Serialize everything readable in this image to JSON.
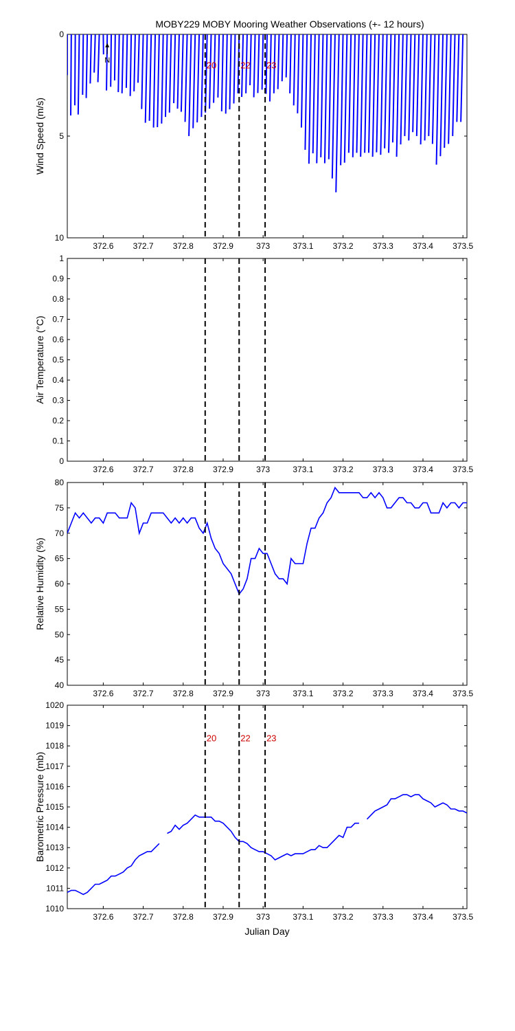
{
  "figure": {
    "title": "MOBY229 MOBY Mooring Weather Observations (+- 12 hours)"
  },
  "colors": {
    "data": "#0000ff",
    "marker_label": "#cc0000",
    "axis": "#000000",
    "background": "#ffffff"
  },
  "chart_data": [
    {
      "type": "line",
      "variant": "wind-sticks",
      "ylabel": "Wind Speed (m/s)",
      "xlabel": "",
      "xlim": [
        372.51,
        373.51
      ],
      "ylim": [
        0,
        10
      ],
      "y_reversed": true,
      "xticks": [
        372.6,
        372.7,
        372.8,
        372.9,
        373,
        373.1,
        373.2,
        373.3,
        373.4,
        373.5
      ],
      "xtick_labels": [
        "372.6",
        "372.7",
        "372.8",
        "372.9",
        "373",
        "373.1",
        "373.2",
        "373.3",
        "373.4",
        "373.5"
      ],
      "yticks": [
        0,
        5,
        10
      ],
      "ytick_labels": [
        "0",
        "5",
        "10"
      ],
      "grid": false,
      "north_label": "N",
      "series": [
        {
          "x": [
            372.51,
            372.52,
            372.53,
            372.54,
            372.55,
            372.56,
            372.57,
            372.58,
            372.59,
            372.6,
            372.61,
            372.62,
            372.63,
            372.64,
            372.65,
            372.66,
            372.67,
            372.68,
            372.69,
            372.7,
            372.71,
            372.72,
            372.73,
            372.74,
            372.75,
            372.76,
            372.77,
            372.78,
            372.79,
            372.8,
            372.81,
            372.82,
            372.83,
            372.84,
            372.85,
            372.86,
            372.87,
            372.88,
            372.89,
            372.9,
            372.91,
            372.92,
            372.93,
            372.94,
            372.95,
            372.96,
            372.97,
            372.98,
            372.99,
            373.0,
            373.01,
            373.02,
            373.03,
            373.04,
            373.05,
            373.06,
            373.07,
            373.08,
            373.09,
            373.1,
            373.11,
            373.12,
            373.13,
            373.14,
            373.15,
            373.16,
            373.17,
            373.18,
            373.19,
            373.2,
            373.21,
            373.22,
            373.23,
            373.24,
            373.25,
            373.26,
            373.27,
            373.28,
            373.29,
            373.3,
            373.31,
            373.32,
            373.33,
            373.34,
            373.35,
            373.36,
            373.37,
            373.38,
            373.39,
            373.4,
            373.41,
            373.42,
            373.43,
            373.44,
            373.45,
            373.46,
            373.47,
            373.48,
            373.49,
            373.5
          ],
          "speed": [
            2.0,
            4.0,
            3.5,
            4.0,
            3.0,
            3.2,
            2.5,
            2.0,
            2.5,
            1.0,
            2.8,
            2.6,
            2.3,
            2.9,
            3.0,
            2.7,
            3.1,
            2.9,
            2.5,
            3.8,
            4.5,
            4.4,
            4.7,
            4.7,
            4.5,
            4.2,
            4.0,
            3.5,
            3.8,
            4.0,
            4.5,
            5.2,
            4.8,
            4.5,
            4.2,
            4.0,
            3.8,
            3.5,
            3.2,
            3.9,
            4.0,
            3.8,
            3.5,
            3.0,
            3.2,
            3.0,
            2.6,
            3.2,
            3.0,
            2.8,
            3.0,
            3.4,
            3.0,
            2.8,
            2.4,
            2.2,
            3.0,
            3.6,
            4.0,
            4.7,
            5.8,
            6.5,
            6.0,
            6.5,
            6.2,
            6.5,
            6.3,
            7.3,
            8.0,
            6.6,
            6.5,
            6.0,
            6.2,
            6.0,
            6.2,
            6.0,
            6.0,
            6.2,
            6.0,
            6.1,
            5.8,
            6.0,
            5.5,
            6.2,
            5.6,
            5.2,
            5.4,
            5.0,
            5.2,
            5.6,
            5.4,
            5.2,
            5.6,
            6.6,
            6.2,
            5.8,
            5.6,
            5.2,
            4.5,
            4.5
          ],
          "direction_deg": [
            180,
            185,
            185,
            190,
            188,
            192,
            195,
            200,
            200,
            170,
            190,
            188,
            190,
            192,
            195,
            193,
            192,
            195,
            198,
            195,
            195,
            195,
            193,
            194,
            193,
            195,
            196,
            195,
            196,
            198,
            197,
            196,
            196,
            196,
            195,
            196,
            196,
            196,
            194,
            194,
            193,
            194,
            194,
            195,
            196,
            195,
            196,
            195,
            196,
            194,
            193,
            194,
            195,
            196,
            196,
            196,
            195,
            194,
            194,
            193,
            192,
            192,
            193,
            193,
            193,
            193,
            193,
            194,
            194,
            193,
            194,
            194,
            193,
            194,
            194,
            194,
            194,
            194,
            195,
            194,
            195,
            194,
            195,
            194,
            195,
            196,
            195,
            196,
            196,
            195,
            195,
            196,
            196,
            194,
            195,
            196,
            196,
            196,
            197,
            197
          ]
        }
      ],
      "markers": [
        {
          "x": 372.855,
          "label": "20"
        },
        {
          "x": 372.94,
          "label": "22"
        },
        {
          "x": 373.005,
          "label": "23"
        }
      ],
      "marker_label_y": 1.5
    },
    {
      "type": "line",
      "ylabel": "Air Temperature (°C)",
      "xlabel": "",
      "xlim": [
        372.51,
        373.51
      ],
      "ylim": [
        0,
        1
      ],
      "xticks": [
        372.6,
        372.7,
        372.8,
        372.9,
        373,
        373.1,
        373.2,
        373.3,
        373.4,
        373.5
      ],
      "xtick_labels": [
        "372.6",
        "372.7",
        "372.8",
        "372.9",
        "373",
        "373.1",
        "373.2",
        "373.3",
        "373.4",
        "373.5"
      ],
      "yticks": [
        0,
        0.1,
        0.2,
        0.3,
        0.4,
        0.5,
        0.6,
        0.7,
        0.8,
        0.9,
        1
      ],
      "ytick_labels": [
        "0",
        "0.1",
        "0.2",
        "0.3",
        "0.4",
        "0.5",
        "0.6",
        "0.7",
        "0.8",
        "0.9",
        "1"
      ],
      "grid": false,
      "series": [],
      "markers": [
        {
          "x": 372.855,
          "label": ""
        },
        {
          "x": 372.94,
          "label": ""
        },
        {
          "x": 373.005,
          "label": ""
        }
      ]
    },
    {
      "type": "line",
      "ylabel": "Relative Humidity (%)",
      "xlabel": "",
      "xlim": [
        372.51,
        373.51
      ],
      "ylim": [
        40,
        80
      ],
      "xticks": [
        372.6,
        372.7,
        372.8,
        372.9,
        373,
        373.1,
        373.2,
        373.3,
        373.4,
        373.5
      ],
      "xtick_labels": [
        "372.6",
        "372.7",
        "372.8",
        "372.9",
        "373",
        "373.1",
        "373.2",
        "373.3",
        "373.4",
        "373.5"
      ],
      "yticks": [
        40,
        45,
        50,
        55,
        60,
        65,
        70,
        75,
        80
      ],
      "ytick_labels": [
        "40",
        "45",
        "50",
        "55",
        "60",
        "65",
        "70",
        "75",
        "80"
      ],
      "grid": false,
      "series": [
        {
          "x": [
            372.51,
            372.52,
            372.53,
            372.54,
            372.55,
            372.56,
            372.57,
            372.58,
            372.59,
            372.6,
            372.61,
            372.62,
            372.63,
            372.64,
            372.65,
            372.66,
            372.67,
            372.68,
            372.69,
            372.7,
            372.71,
            372.72,
            372.73,
            372.74,
            372.75,
            372.76,
            372.77,
            372.78,
            372.79,
            372.8,
            372.81,
            372.82,
            372.83,
            372.84,
            372.85,
            372.86,
            372.87,
            372.88,
            372.89,
            372.9,
            372.91,
            372.92,
            372.93,
            372.94,
            372.95,
            372.96,
            372.97,
            372.98,
            372.99,
            373.0,
            373.01,
            373.02,
            373.03,
            373.04,
            373.05,
            373.06,
            373.07,
            373.08,
            373.09,
            373.1,
            373.11,
            373.12,
            373.13,
            373.14,
            373.15,
            373.16,
            373.17,
            373.18,
            373.19,
            373.2,
            373.21,
            373.22,
            373.23,
            373.24,
            373.25,
            373.26,
            373.27,
            373.28,
            373.29,
            373.3,
            373.31,
            373.32,
            373.33,
            373.34,
            373.35,
            373.36,
            373.37,
            373.38,
            373.39,
            373.4,
            373.41,
            373.42,
            373.43,
            373.44,
            373.45,
            373.46,
            373.47,
            373.48,
            373.49,
            373.5,
            373.51
          ],
          "y": [
            70,
            72,
            74,
            73,
            74,
            73,
            72,
            73,
            73,
            72,
            74,
            74,
            74,
            73,
            73,
            73,
            76,
            75,
            70,
            72,
            72,
            74,
            74,
            74,
            74,
            73,
            72,
            73,
            72,
            73,
            72,
            73,
            73,
            71,
            70,
            72,
            69,
            67,
            66,
            64,
            63,
            62,
            60,
            58,
            59,
            61,
            65,
            65,
            67,
            66,
            66,
            64,
            62,
            61,
            61,
            60,
            65,
            64,
            64,
            64,
            68,
            71,
            71,
            73,
            74,
            76,
            77,
            79,
            78,
            78,
            78,
            78,
            78,
            78,
            77,
            77,
            78,
            77,
            78,
            77,
            75,
            75,
            76,
            77,
            77,
            76,
            76,
            75,
            75,
            76,
            76,
            74,
            74,
            74,
            76,
            75,
            76,
            76,
            75,
            76,
            76
          ]
        }
      ],
      "markers": [
        {
          "x": 372.855,
          "label": ""
        },
        {
          "x": 372.94,
          "label": ""
        },
        {
          "x": 373.005,
          "label": ""
        }
      ]
    },
    {
      "type": "line",
      "ylabel": "Barometric Pressure (mb)",
      "xlabel": "Julian Day",
      "xlim": [
        372.51,
        373.51
      ],
      "ylim": [
        1010,
        1020
      ],
      "xticks": [
        372.6,
        372.7,
        372.8,
        372.9,
        373,
        373.1,
        373.2,
        373.3,
        373.4,
        373.5
      ],
      "xtick_labels": [
        "372.6",
        "372.7",
        "372.8",
        "372.9",
        "373",
        "373.1",
        "373.2",
        "373.3",
        "373.4",
        "373.5"
      ],
      "yticks": [
        1010,
        1011,
        1012,
        1013,
        1014,
        1015,
        1016,
        1017,
        1018,
        1019,
        1020
      ],
      "ytick_labels": [
        "1010",
        "1011",
        "1012",
        "1013",
        "1014",
        "1015",
        "1016",
        "1017",
        "1018",
        "1019",
        "1020"
      ],
      "grid": false,
      "series": [
        {
          "segments": [
            {
              "x": [
                372.51,
                372.52,
                372.53,
                372.54,
                372.55,
                372.56,
                372.57,
                372.58,
                372.59,
                372.6,
                372.61,
                372.62,
                372.63,
                372.64,
                372.65,
                372.66,
                372.67,
                372.68,
                372.69,
                372.7,
                372.71,
                372.72,
                372.73,
                372.74
              ],
              "y": [
                1010.8,
                1010.9,
                1010.9,
                1010.8,
                1010.7,
                1010.8,
                1011.0,
                1011.2,
                1011.2,
                1011.3,
                1011.4,
                1011.6,
                1011.6,
                1011.7,
                1011.8,
                1012.0,
                1012.1,
                1012.4,
                1012.6,
                1012.7,
                1012.8,
                1012.8,
                1013.0,
                1013.2
              ]
            },
            {
              "x": [
                372.76,
                372.77,
                372.78,
                372.79,
                372.8,
                372.81,
                372.82,
                372.83,
                372.84,
                372.85,
                372.86,
                372.87,
                372.88,
                372.89,
                372.9,
                372.91,
                372.92,
                372.93,
                372.94,
                372.95,
                372.96,
                372.97,
                372.98,
                372.99,
                373.0,
                373.01,
                373.02,
                373.03,
                373.04,
                373.05,
                373.06,
                373.07,
                373.08,
                373.09,
                373.1,
                373.11,
                373.12,
                373.13,
                373.14,
                373.15,
                373.16,
                373.17,
                373.18,
                373.19,
                373.2,
                373.21,
                373.22,
                373.23,
                373.24
              ],
              "y": [
                1013.7,
                1013.8,
                1014.1,
                1013.9,
                1014.1,
                1014.2,
                1014.4,
                1014.6,
                1014.5,
                1014.5,
                1014.5,
                1014.5,
                1014.3,
                1014.3,
                1014.2,
                1014.0,
                1013.8,
                1013.5,
                1013.3,
                1013.3,
                1013.2,
                1013.0,
                1012.9,
                1012.8,
                1012.8,
                1012.7,
                1012.6,
                1012.4,
                1012.5,
                1012.6,
                1012.7,
                1012.6,
                1012.7,
                1012.7,
                1012.7,
                1012.8,
                1012.9,
                1012.9,
                1013.1,
                1013.0,
                1013.0,
                1013.2,
                1013.4,
                1013.6,
                1013.5,
                1014.0,
                1014.0,
                1014.2,
                1014.2
              ]
            },
            {
              "x": [
                373.26,
                373.27,
                373.28,
                373.29,
                373.3,
                373.31,
                373.32,
                373.33,
                373.34,
                373.35,
                373.36,
                373.37,
                373.38,
                373.39,
                373.4,
                373.41,
                373.42,
                373.43,
                373.44,
                373.45,
                373.46,
                373.47,
                373.48,
                373.49,
                373.5,
                373.51
              ],
              "y": [
                1014.4,
                1014.6,
                1014.8,
                1014.9,
                1015.0,
                1015.1,
                1015.4,
                1015.4,
                1015.5,
                1015.6,
                1015.6,
                1015.5,
                1015.6,
                1015.6,
                1015.4,
                1015.3,
                1015.2,
                1015.0,
                1015.1,
                1015.2,
                1015.1,
                1014.9,
                1014.9,
                1014.8,
                1014.8,
                1014.7
              ]
            }
          ]
        }
      ],
      "markers": [
        {
          "x": 372.855,
          "label": "20"
        },
        {
          "x": 372.94,
          "label": "22"
        },
        {
          "x": 373.005,
          "label": "23"
        }
      ],
      "marker_label_y": 1018.4
    }
  ]
}
